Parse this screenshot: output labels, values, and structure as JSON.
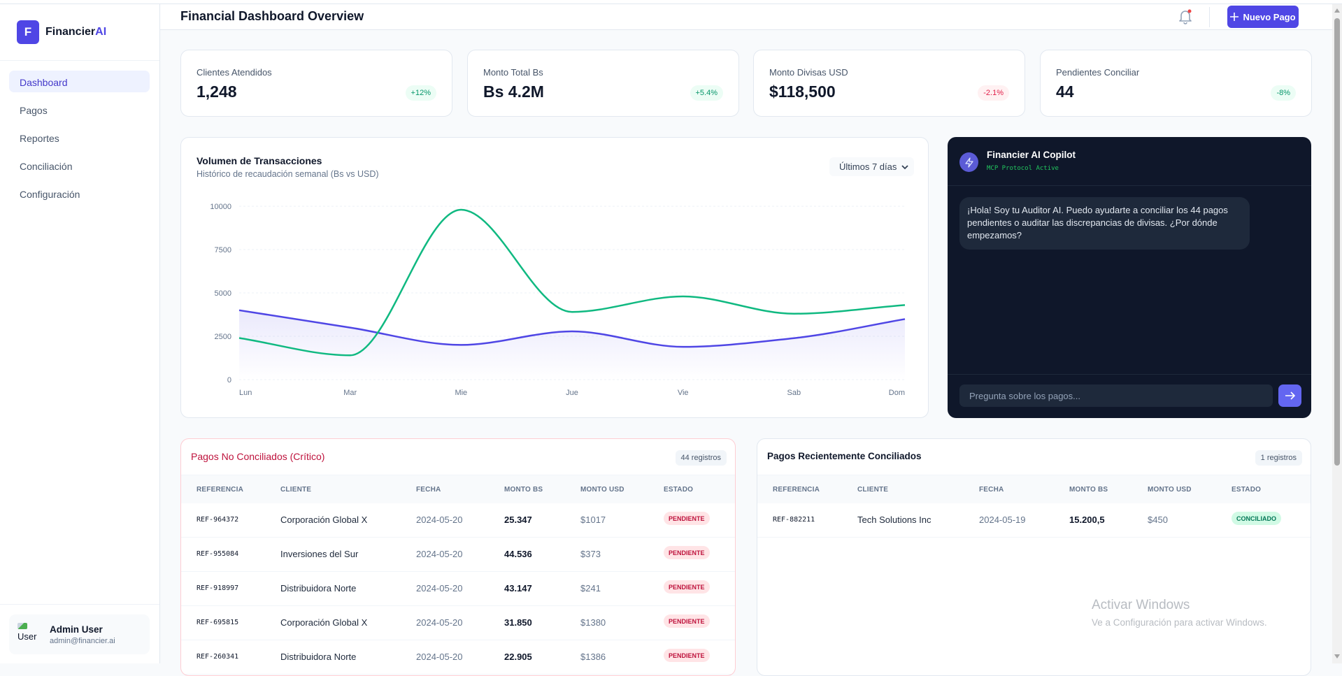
{
  "app": {
    "logo_letter": "F",
    "name_prefix": "Financier",
    "name_suffix": "AI"
  },
  "sidebar": {
    "items": [
      {
        "label": "Dashboard",
        "active": true
      },
      {
        "label": "Pagos"
      },
      {
        "label": "Reportes"
      },
      {
        "label": "Conciliación"
      },
      {
        "label": "Configuración"
      }
    ],
    "user": {
      "avatar_alt": "User",
      "name": "Admin User",
      "email": "admin@financier.ai"
    }
  },
  "header": {
    "title": "Financial Dashboard Overview",
    "new_button": "Nuevo Pago",
    "bell_icon": "bell-icon",
    "notification_dot_color": "#ef4444"
  },
  "kpis": [
    {
      "label": "Clientes Atendidos",
      "value": "1,248",
      "change": "+12%",
      "trend": "positive"
    },
    {
      "label": "Monto Total Bs",
      "value": "Bs 4.2M",
      "change": "+5.4%",
      "trend": "positive"
    },
    {
      "label": "Monto Divisas USD",
      "value": "$118,500",
      "change": "-2.1%",
      "trend": "negative"
    },
    {
      "label": "Pendientes Conciliar",
      "value": "44",
      "change": "-8%",
      "trend": "positive"
    }
  ],
  "chart": {
    "title": "Volumen de Transacciones",
    "subtitle": "Histórico de recaudación semanal (Bs vs USD)",
    "range_select": "Últimos 7 días"
  },
  "chart_data": {
    "type": "line",
    "categories": [
      "Lun",
      "Mar",
      "Mie",
      "Jue",
      "Vie",
      "Sab",
      "Dom"
    ],
    "ylim": [
      0,
      10000
    ],
    "yticks": [
      "0",
      "2500",
      "5000",
      "7500",
      "10000"
    ],
    "grid": true,
    "series": [
      {
        "values": [
          4000,
          3000,
          2000,
          2780,
          1890,
          2390,
          3490
        ],
        "color": "#4f46e5",
        "area": true
      },
      {
        "values": [
          2400,
          1400,
          9800,
          3900,
          4800,
          3800,
          4300
        ],
        "color": "#10b981",
        "area": false
      }
    ]
  },
  "copilot": {
    "title": "Financier AI Copilot",
    "status": "MCP Protocol Active",
    "message": "¡Hola! Soy tu Auditor AI. Puedo ayudarte a conciliar los 44 pagos pendientes o auditar las discrepancias de divisas. ¿Por dónde empezamos?",
    "input_placeholder": "Pregunta sobre los pagos..."
  },
  "columns": [
    "REFERENCIA",
    "CLIENTE",
    "FECHA",
    "MONTO BS",
    "MONTO USD",
    "ESTADO"
  ],
  "unreconciled": {
    "title": "Pagos No Conciliados (Crítico)",
    "count": "44 registros",
    "rows": [
      {
        "ref": "REF-964372",
        "client": "Corporación Global X",
        "date": "2024-05-20",
        "bs": "25.347",
        "usd": "$1017",
        "status": "PENDIENTE"
      },
      {
        "ref": "REF-955084",
        "client": "Inversiones del Sur",
        "date": "2024-05-20",
        "bs": "44.536",
        "usd": "$373",
        "status": "PENDIENTE"
      },
      {
        "ref": "REF-918997",
        "client": "Distribuidora Norte",
        "date": "2024-05-20",
        "bs": "43.147",
        "usd": "$241",
        "status": "PENDIENTE"
      },
      {
        "ref": "REF-695815",
        "client": "Corporación Global X",
        "date": "2024-05-20",
        "bs": "31.850",
        "usd": "$1380",
        "status": "PENDIENTE"
      },
      {
        "ref": "REF-260341",
        "client": "Distribuidora Norte",
        "date": "2024-05-20",
        "bs": "22.905",
        "usd": "$1386",
        "status": "PENDIENTE"
      }
    ]
  },
  "reconciled": {
    "title": "Pagos Recientemente Conciliados",
    "count": "1 registros",
    "rows": [
      {
        "ref": "REF-882211",
        "client": "Tech Solutions Inc",
        "date": "2024-05-19",
        "bs": "15.200,5",
        "usd": "$450",
        "status": "CONCILIADO"
      }
    ]
  },
  "watermark": {
    "line1": "Activar Windows",
    "line2": "Ve a Configuración para activar Windows."
  }
}
